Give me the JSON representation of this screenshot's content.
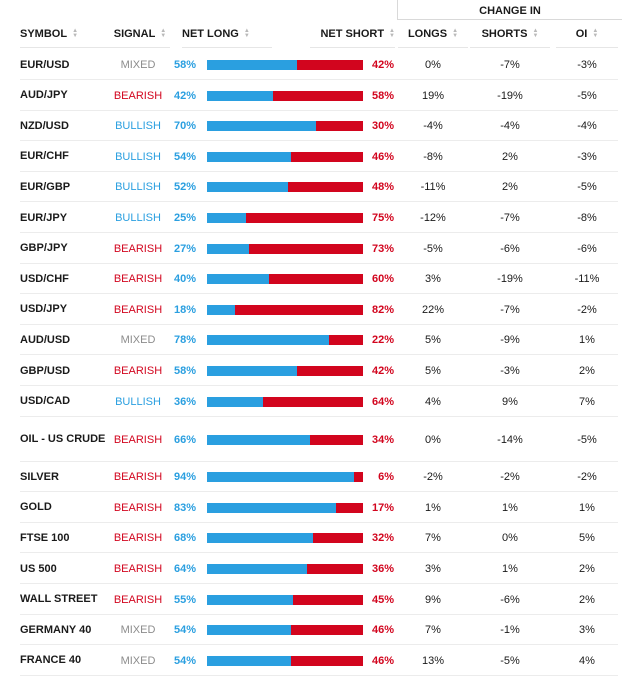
{
  "header": {
    "group_label": "CHANGE IN",
    "symbol": "SYMBOL",
    "signal": "SIGNAL",
    "net_long": "NET LONG",
    "net_short": "NET SHORT",
    "longs": "LONGS",
    "shorts": "SHORTS",
    "oi": "OI"
  },
  "colors": {
    "bullish": "#2a9fe0",
    "bearish": "#d2051e",
    "mixed": "#8c8c8c"
  },
  "rows": [
    {
      "symbol": "EUR/USD",
      "signal": "MIXED",
      "net_long": 58,
      "net_short": 42,
      "longs": "0%",
      "shorts": "-7%",
      "oi": "-3%"
    },
    {
      "symbol": "AUD/JPY",
      "signal": "BEARISH",
      "net_long": 42,
      "net_short": 58,
      "longs": "19%",
      "shorts": "-19%",
      "oi": "-5%"
    },
    {
      "symbol": "NZD/USD",
      "signal": "BULLISH",
      "net_long": 70,
      "net_short": 30,
      "longs": "-4%",
      "shorts": "-4%",
      "oi": "-4%"
    },
    {
      "symbol": "EUR/CHF",
      "signal": "BULLISH",
      "net_long": 54,
      "net_short": 46,
      "longs": "-8%",
      "shorts": "2%",
      "oi": "-3%"
    },
    {
      "symbol": "EUR/GBP",
      "signal": "BULLISH",
      "net_long": 52,
      "net_short": 48,
      "longs": "-11%",
      "shorts": "2%",
      "oi": "-5%"
    },
    {
      "symbol": "EUR/JPY",
      "signal": "BULLISH",
      "net_long": 25,
      "net_short": 75,
      "longs": "-12%",
      "shorts": "-7%",
      "oi": "-8%"
    },
    {
      "symbol": "GBP/JPY",
      "signal": "BEARISH",
      "net_long": 27,
      "net_short": 73,
      "longs": "-5%",
      "shorts": "-6%",
      "oi": "-6%"
    },
    {
      "symbol": "USD/CHF",
      "signal": "BEARISH",
      "net_long": 40,
      "net_short": 60,
      "longs": "3%",
      "shorts": "-19%",
      "oi": "-11%"
    },
    {
      "symbol": "USD/JPY",
      "signal": "BEARISH",
      "net_long": 18,
      "net_short": 82,
      "longs": "22%",
      "shorts": "-7%",
      "oi": "-2%"
    },
    {
      "symbol": "AUD/USD",
      "signal": "MIXED",
      "net_long": 78,
      "net_short": 22,
      "longs": "5%",
      "shorts": "-9%",
      "oi": "1%"
    },
    {
      "symbol": "GBP/USD",
      "signal": "BEARISH",
      "net_long": 58,
      "net_short": 42,
      "longs": "5%",
      "shorts": "-3%",
      "oi": "2%"
    },
    {
      "symbol": "USD/CAD",
      "signal": "BULLISH",
      "net_long": 36,
      "net_short": 64,
      "longs": "4%",
      "shorts": "9%",
      "oi": "7%"
    },
    {
      "symbol": "OIL - US CRUDE",
      "signal": "BEARISH",
      "net_long": 66,
      "net_short": 34,
      "longs": "0%",
      "shorts": "-14%",
      "oi": "-5%",
      "tall": true
    },
    {
      "symbol": "SILVER",
      "signal": "BEARISH",
      "net_long": 94,
      "net_short": 6,
      "longs": "-2%",
      "shorts": "-2%",
      "oi": "-2%"
    },
    {
      "symbol": "GOLD",
      "signal": "BEARISH",
      "net_long": 83,
      "net_short": 17,
      "longs": "1%",
      "shorts": "1%",
      "oi": "1%"
    },
    {
      "symbol": "FTSE 100",
      "signal": "BEARISH",
      "net_long": 68,
      "net_short": 32,
      "longs": "7%",
      "shorts": "0%",
      "oi": "5%"
    },
    {
      "symbol": "US 500",
      "signal": "BEARISH",
      "net_long": 64,
      "net_short": 36,
      "longs": "3%",
      "shorts": "1%",
      "oi": "2%"
    },
    {
      "symbol": "WALL STREET",
      "signal": "BEARISH",
      "net_long": 55,
      "net_short": 45,
      "longs": "9%",
      "shorts": "-6%",
      "oi": "2%"
    },
    {
      "symbol": "GERMANY 40",
      "signal": "MIXED",
      "net_long": 54,
      "net_short": 46,
      "longs": "7%",
      "shorts": "-1%",
      "oi": "3%"
    },
    {
      "symbol": "FRANCE 40",
      "signal": "MIXED",
      "net_long": 54,
      "net_short": 46,
      "longs": "13%",
      "shorts": "-5%",
      "oi": "4%"
    }
  ]
}
